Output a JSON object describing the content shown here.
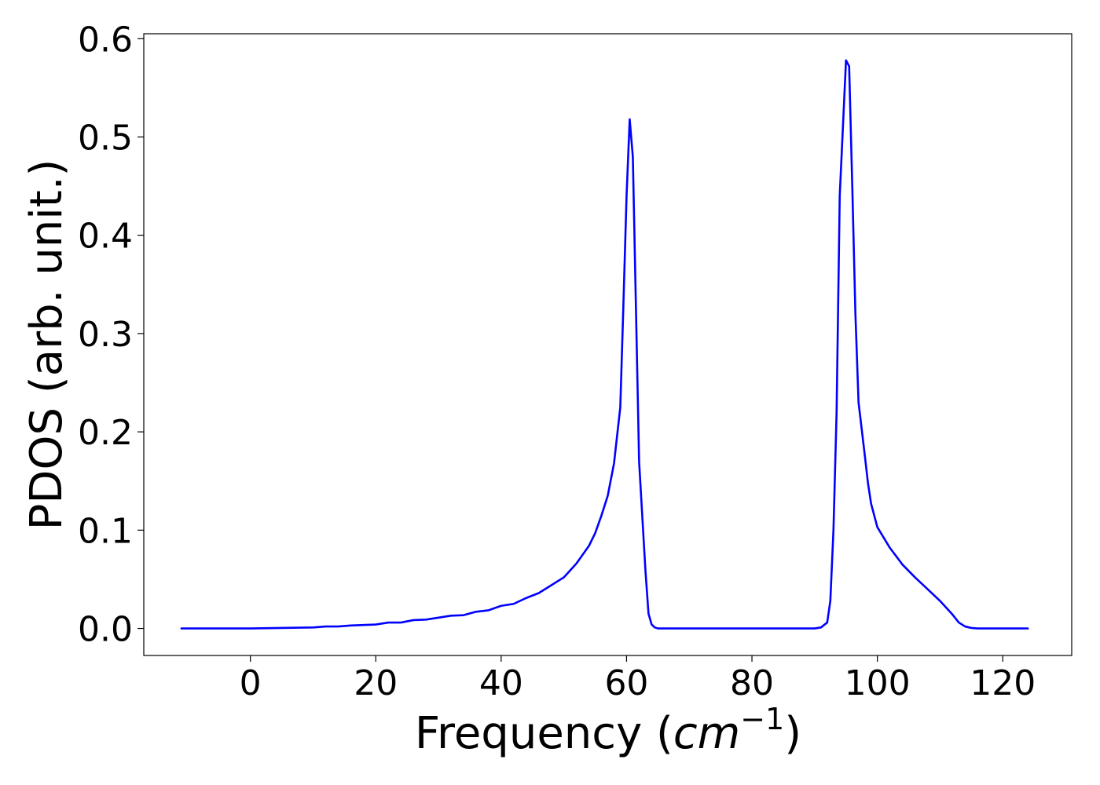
{
  "chart_data": {
    "type": "line",
    "title": "",
    "xlabel": {
      "prefix": "Frequency (",
      "italic": "cm",
      "sup": "−1",
      "suffix": ")"
    },
    "ylabel": "PDOS (arb. unit.)",
    "xlim": [
      -17,
      131
    ],
    "ylim": [
      -0.0275,
      0.605
    ],
    "xticks": [
      0,
      20,
      40,
      60,
      80,
      100,
      120
    ],
    "xtick_labels": [
      "0",
      "20",
      "40",
      "60",
      "80",
      "100",
      "120"
    ],
    "yticks": [
      0.0,
      0.1,
      0.2,
      0.3,
      0.4,
      0.5,
      0.6
    ],
    "ytick_labels": [
      "0.0",
      "0.1",
      "0.2",
      "0.3",
      "0.4",
      "0.5",
      "0.6"
    ],
    "grid": false,
    "legend": "none",
    "series": [
      {
        "color": "#0000ff",
        "x": [
          -11,
          0,
          5,
          10,
          12,
          14,
          16,
          18,
          20,
          22,
          24,
          26,
          28,
          30,
          32,
          34,
          36,
          38,
          40,
          42,
          44,
          46,
          48,
          50,
          52,
          54,
          55,
          56,
          57,
          58,
          59,
          59.5,
          60,
          60.5,
          61,
          62,
          63,
          63.5,
          64,
          64.5,
          65,
          66,
          70,
          80,
          90,
          91,
          92,
          92.5,
          93,
          93.5,
          94,
          95,
          95.5,
          96,
          96.5,
          97,
          98,
          98.5,
          99,
          100,
          102,
          104,
          106,
          108,
          110,
          112,
          113,
          114,
          115,
          116,
          124
        ],
        "y": [
          0.0,
          0.0,
          0.0005,
          0.001,
          0.002,
          0.002,
          0.003,
          0.0035,
          0.004,
          0.006,
          0.006,
          0.0085,
          0.009,
          0.011,
          0.013,
          0.0135,
          0.017,
          0.0185,
          0.023,
          0.025,
          0.031,
          0.036,
          0.044,
          0.052,
          0.066,
          0.084,
          0.097,
          0.115,
          0.135,
          0.168,
          0.225,
          0.33,
          0.44,
          0.518,
          0.48,
          0.17,
          0.06,
          0.015,
          0.004,
          0.001,
          0.0,
          0.0,
          0.0,
          0.0,
          0.0,
          0.001,
          0.006,
          0.028,
          0.1,
          0.22,
          0.44,
          0.578,
          0.572,
          0.45,
          0.32,
          0.23,
          0.176,
          0.148,
          0.127,
          0.103,
          0.082,
          0.065,
          0.052,
          0.04,
          0.028,
          0.014,
          0.006,
          0.002,
          0.0005,
          0.0,
          0.0
        ]
      }
    ]
  }
}
